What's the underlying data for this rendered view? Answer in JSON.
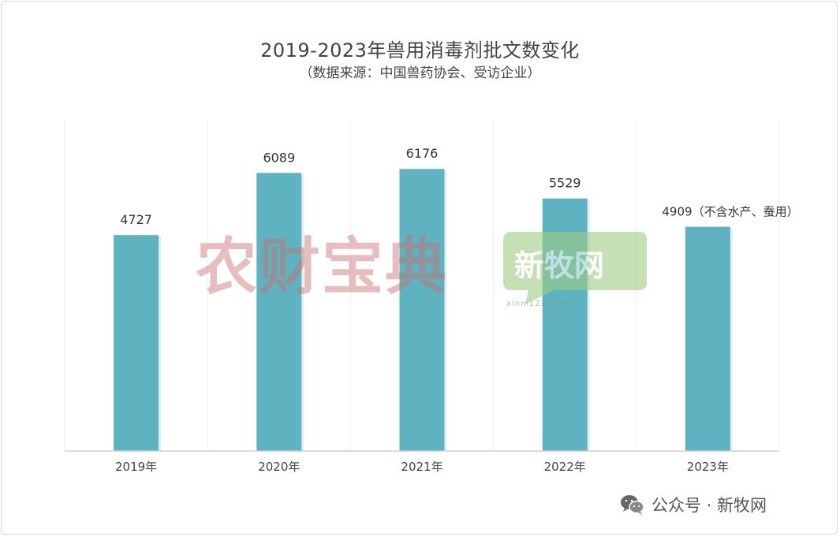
{
  "chart_data": {
    "type": "bar",
    "title": "2019-2023年兽用消毒剂批文数变化",
    "subtitle": "（数据来源：中国兽药协会、受访企业）",
    "categories": [
      "2019年",
      "2020年",
      "2021年",
      "2022年",
      "2023年"
    ],
    "values": [
      4727,
      6089,
      6176,
      5529,
      4909
    ],
    "data_labels": [
      "4727",
      "6089",
      "6176",
      "5529",
      "4909（不含水产、蚕用）"
    ],
    "ylim": [
      0,
      7250
    ],
    "grid": "vertical",
    "bar_color": "#5fb3c1"
  },
  "watermarks": {
    "left": "农财宝典",
    "right": "新牧网",
    "right_url": "xinm123.com"
  },
  "footer": {
    "text": "公众号 · 新牧网"
  },
  "icons": {
    "footer": "wechat-icon"
  }
}
